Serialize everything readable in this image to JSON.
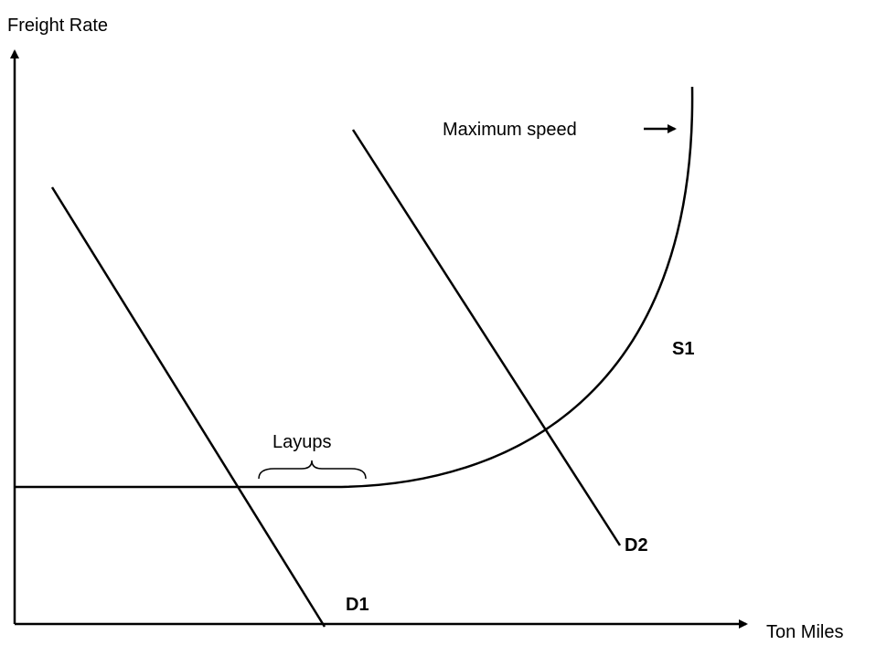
{
  "axes": {
    "y_label": "Freight Rate",
    "x_label": "Ton Miles"
  },
  "curves": {
    "supply": "S1",
    "demand": [
      "D1",
      "D2"
    ]
  },
  "annotations": {
    "max_speed": "Maximum speed",
    "layups": "Layups"
  }
}
